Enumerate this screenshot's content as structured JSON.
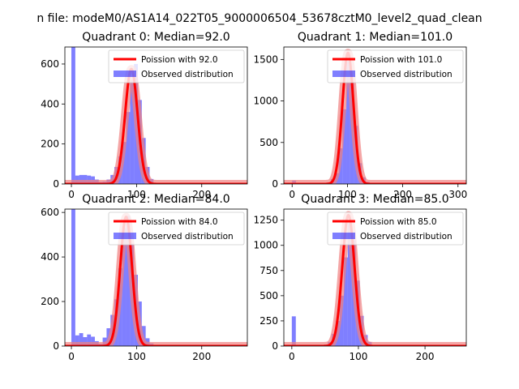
{
  "figure": {
    "suptitle": "n file: modeM0/AS1A14_022T05_9000006504_53678cztM0_level2_quad_clean"
  },
  "colors": {
    "hist": "#0000ff",
    "hist_alpha": 0.5,
    "poisson_line": "#ff0000",
    "band": "#f08080",
    "axis": "#000000",
    "background": "#ffffff"
  },
  "chart_data": [
    {
      "type": "bar",
      "title": "Quadrant 0: Median=92.0",
      "median": 92.0,
      "xlim": [
        -10,
        270
      ],
      "ylim": [
        0,
        685
      ],
      "xticks": [
        0,
        100,
        200
      ],
      "yticks": [
        0,
        200,
        400,
        600
      ],
      "bin_width": 6,
      "bins": [
        [
          0,
          685
        ],
        [
          6,
          42
        ],
        [
          12,
          45
        ],
        [
          18,
          45
        ],
        [
          24,
          42
        ],
        [
          30,
          38
        ],
        [
          36,
          22
        ],
        [
          42,
          10
        ],
        [
          48,
          12
        ],
        [
          54,
          22
        ],
        [
          60,
          45
        ],
        [
          66,
          85
        ],
        [
          72,
          138
        ],
        [
          78,
          210
        ],
        [
          84,
          360
        ],
        [
          90,
          520
        ],
        [
          96,
          600
        ],
        [
          102,
          420
        ],
        [
          108,
          230
        ],
        [
          114,
          85
        ],
        [
          120,
          25
        ],
        [
          126,
          5
        ],
        [
          132,
          2
        ]
      ],
      "poisson": {
        "label": "Poission with 92.0",
        "mu": 92.0,
        "peak": 575
      },
      "legend": {
        "line": "Poission with 92.0",
        "patch": "Observed distribution",
        "loc": "upper right"
      }
    },
    {
      "type": "bar",
      "title": "Quadrant 1: Median=101.0",
      "median": 101.0,
      "xlim": [
        -15,
        315
      ],
      "ylim": [
        0,
        1650
      ],
      "xticks": [
        0,
        100,
        200,
        300
      ],
      "yticks": [
        0,
        500,
        1000,
        1500
      ],
      "bin_width": 7,
      "bins": [
        [
          0,
          40
        ],
        [
          7,
          5
        ],
        [
          14,
          2
        ],
        [
          21,
          2
        ],
        [
          28,
          1
        ],
        [
          35,
          1
        ],
        [
          42,
          2
        ],
        [
          49,
          4
        ],
        [
          56,
          8
        ],
        [
          63,
          20
        ],
        [
          70,
          60
        ],
        [
          77,
          130
        ],
        [
          84,
          430
        ],
        [
          91,
          900
        ],
        [
          98,
          1480
        ],
        [
          105,
          1230
        ],
        [
          112,
          700
        ],
        [
          119,
          250
        ],
        [
          126,
          80
        ],
        [
          133,
          25
        ],
        [
          140,
          8
        ],
        [
          147,
          3
        ]
      ],
      "poisson": {
        "label": "Poission with 101.0",
        "mu": 101.0,
        "peak": 1580
      },
      "legend": {
        "line": "Poission with 101.0",
        "patch": "Observed distribution",
        "loc": "upper right"
      }
    },
    {
      "type": "bar",
      "title": "Quadrant 2: Median=84.0",
      "median": 84.0,
      "xlim": [
        -10,
        270
      ],
      "ylim": [
        0,
        615
      ],
      "xticks": [
        0,
        100,
        200
      ],
      "yticks": [
        0,
        200,
        400,
        600
      ],
      "bin_width": 6,
      "bins": [
        [
          0,
          615
        ],
        [
          6,
          48
        ],
        [
          12,
          58
        ],
        [
          18,
          40
        ],
        [
          24,
          52
        ],
        [
          30,
          42
        ],
        [
          36,
          22
        ],
        [
          42,
          10
        ],
        [
          48,
          38
        ],
        [
          54,
          80
        ],
        [
          60,
          140
        ],
        [
          66,
          210
        ],
        [
          72,
          350
        ],
        [
          78,
          530
        ],
        [
          84,
          585
        ],
        [
          90,
          460
        ],
        [
          96,
          320
        ],
        [
          102,
          200
        ],
        [
          108,
          90
        ],
        [
          114,
          35
        ],
        [
          120,
          12
        ],
        [
          126,
          4
        ]
      ],
      "poisson": {
        "label": "Poission with 84.0",
        "mu": 84.0,
        "peak": 580
      },
      "legend": {
        "line": "Poission with 84.0",
        "patch": "Observed distribution",
        "loc": "upper right"
      }
    },
    {
      "type": "bar",
      "title": "Quadrant 3: Median=85.0",
      "median": 85.0,
      "xlim": [
        -12,
        262
      ],
      "ylim": [
        0,
        1360
      ],
      "xticks": [
        0,
        100,
        200
      ],
      "yticks": [
        0,
        250,
        500,
        750,
        1000,
        1250
      ],
      "bin_width": 6,
      "bins": [
        [
          0,
          295
        ],
        [
          6,
          5
        ],
        [
          12,
          3
        ],
        [
          18,
          2
        ],
        [
          24,
          2
        ],
        [
          30,
          2
        ],
        [
          36,
          3
        ],
        [
          42,
          5
        ],
        [
          48,
          15
        ],
        [
          54,
          40
        ],
        [
          60,
          120
        ],
        [
          66,
          250
        ],
        [
          72,
          500
        ],
        [
          78,
          880
        ],
        [
          84,
          1250
        ],
        [
          90,
          1050
        ],
        [
          96,
          650
        ],
        [
          102,
          300
        ],
        [
          108,
          110
        ],
        [
          114,
          40
        ],
        [
          120,
          12
        ],
        [
          126,
          4
        ]
      ],
      "poisson": {
        "label": "Poission with 85.0",
        "mu": 85.0,
        "peak": 1300
      },
      "legend": {
        "line": "Poission with 85.0",
        "patch": "Observed distribution",
        "loc": "upper right"
      }
    }
  ]
}
